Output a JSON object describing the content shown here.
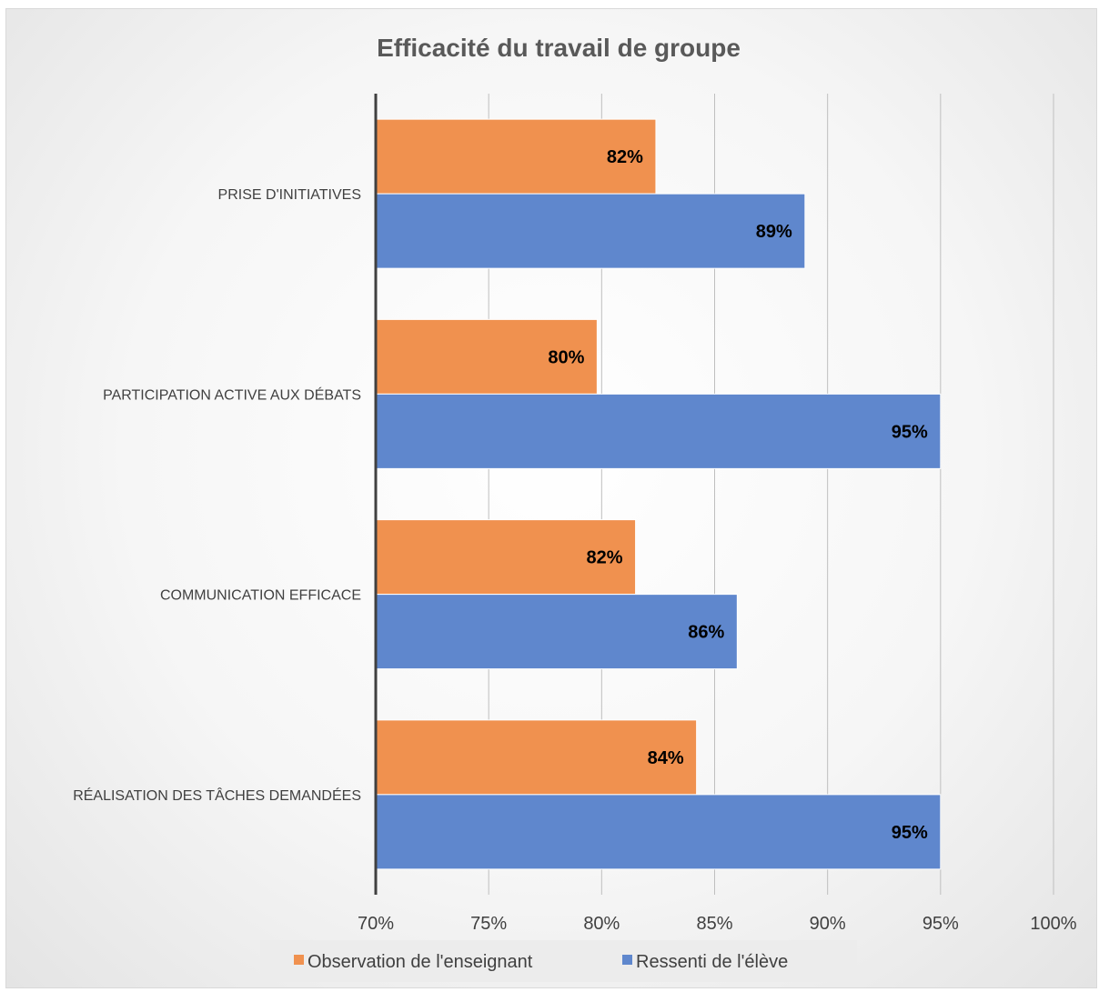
{
  "chart_data": {
    "type": "bar",
    "orientation": "horizontal",
    "title": "Efficacité du travail de groupe",
    "categories": [
      "PRISE D'INITIATIVES",
      "PARTICIPATION ACTIVE AUX DÉBATS",
      "COMMUNICATION EFFICACE",
      "RÉALISATION DES TÂCHES DEMANDÉES"
    ],
    "series": [
      {
        "name": "Observation de l'enseignant",
        "color": "#f0914f",
        "values": [
          82.4,
          79.8,
          81.5,
          84.2
        ],
        "labels": [
          "82%",
          "80%",
          "82%",
          "84%"
        ]
      },
      {
        "name": "Ressenti de l'élève",
        "color": "#5f87cd",
        "values": [
          89,
          95,
          86,
          95
        ],
        "labels": [
          "89%",
          "95%",
          "86%",
          "95%"
        ]
      }
    ],
    "xlim": [
      70,
      100
    ],
    "xticks": [
      70,
      75,
      80,
      85,
      90,
      95,
      100
    ],
    "xtick_labels": [
      "70%",
      "75%",
      "80%",
      "85%",
      "90%",
      "95%",
      "100%"
    ],
    "grid": true,
    "legend_position": "bottom"
  }
}
